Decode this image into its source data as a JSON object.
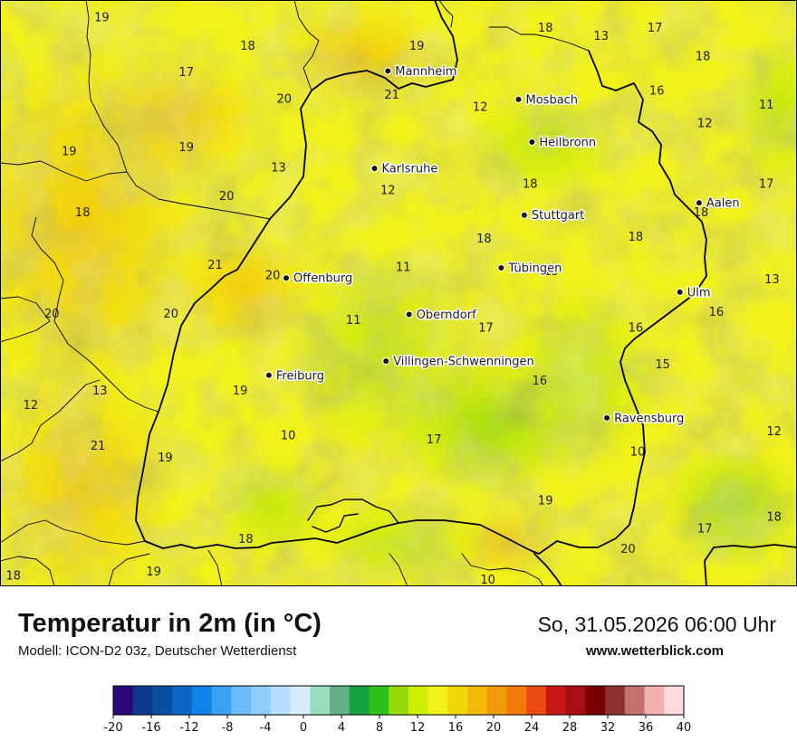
{
  "header": {
    "title": "Temperatur in 2m (in °C)",
    "subtitle": "Modell: ICON-D2 03z, Deutscher Wetterdienst",
    "datetime": "So, 31.05.2026 06:00 Uhr",
    "website": "www.wetterblick.com"
  },
  "map": {
    "cities": [
      {
        "name": "Mannheim",
        "lon": 8.47,
        "lat": 49.49
      },
      {
        "name": "Mosbach",
        "lon": 9.15,
        "lat": 49.35
      },
      {
        "name": "Heilbronn",
        "lon": 9.22,
        "lat": 49.14
      },
      {
        "name": "Karlsruhe",
        "lon": 8.4,
        "lat": 49.01
      },
      {
        "name": "Stuttgart",
        "lon": 9.18,
        "lat": 48.78
      },
      {
        "name": "Aalen",
        "lon": 10.09,
        "lat": 48.84
      },
      {
        "name": "Tübingen",
        "lon": 9.06,
        "lat": 48.52
      },
      {
        "name": "Offenburg",
        "lon": 7.94,
        "lat": 48.47
      },
      {
        "name": "Ulm",
        "lon": 9.99,
        "lat": 48.4
      },
      {
        "name": "Oberndorf",
        "lon": 8.58,
        "lat": 48.29
      },
      {
        "name": "Villingen-Schwenningen",
        "lon": 8.46,
        "lat": 48.06
      },
      {
        "name": "Freiburg",
        "lon": 7.85,
        "lat": 47.99
      },
      {
        "name": "Ravensburg",
        "lon": 9.61,
        "lat": 47.78
      }
    ],
    "temperature_labels": [
      {
        "value": "19",
        "lon": 6.98,
        "lat": 49.75
      },
      {
        "value": "18",
        "lon": 7.74,
        "lat": 49.61
      },
      {
        "value": "19",
        "lon": 8.62,
        "lat": 49.61
      },
      {
        "value": "18",
        "lon": 9.29,
        "lat": 49.7
      },
      {
        "value": "13",
        "lon": 9.58,
        "lat": 49.66
      },
      {
        "value": "17",
        "lon": 9.86,
        "lat": 49.7
      },
      {
        "value": "18",
        "lon": 10.11,
        "lat": 49.56
      },
      {
        "value": "17",
        "lon": 7.42,
        "lat": 49.48
      },
      {
        "value": "20",
        "lon": 7.93,
        "lat": 49.35
      },
      {
        "value": "21",
        "lon": 8.49,
        "lat": 49.37
      },
      {
        "value": "12",
        "lon": 8.95,
        "lat": 49.31
      },
      {
        "value": "16",
        "lon": 9.87,
        "lat": 49.39
      },
      {
        "value": "11",
        "lon": 10.44,
        "lat": 49.32
      },
      {
        "value": "12",
        "lon": 10.12,
        "lat": 49.23
      },
      {
        "value": "19",
        "lon": 6.81,
        "lat": 49.09
      },
      {
        "value": "19",
        "lon": 7.42,
        "lat": 49.11
      },
      {
        "value": "13",
        "lon": 7.9,
        "lat": 49.01
      },
      {
        "value": "12",
        "lon": 8.47,
        "lat": 48.9
      },
      {
        "value": "18",
        "lon": 9.21,
        "lat": 48.93
      },
      {
        "value": "17",
        "lon": 10.44,
        "lat": 48.93
      },
      {
        "value": "20",
        "lon": 7.63,
        "lat": 48.87
      },
      {
        "value": "18",
        "lon": 6.88,
        "lat": 48.79
      },
      {
        "value": "18",
        "lon": 10.1,
        "lat": 48.79
      },
      {
        "value": "18",
        "lon": 8.97,
        "lat": 48.66
      },
      {
        "value": "18",
        "lon": 9.76,
        "lat": 48.67
      },
      {
        "value": "11",
        "lon": 8.55,
        "lat": 48.52
      },
      {
        "value": "21",
        "lon": 7.57,
        "lat": 48.53
      },
      {
        "value": "20",
        "lon": 7.87,
        "lat": 48.48
      },
      {
        "value": "19",
        "lon": 9.32,
        "lat": 48.5
      },
      {
        "value": "13",
        "lon": 10.47,
        "lat": 48.46
      },
      {
        "value": "20",
        "lon": 6.72,
        "lat": 48.29
      },
      {
        "value": "20",
        "lon": 7.34,
        "lat": 48.29
      },
      {
        "value": "17",
        "lon": 8.98,
        "lat": 48.22
      },
      {
        "value": "16",
        "lon": 9.76,
        "lat": 48.22
      },
      {
        "value": "11",
        "lon": 8.29,
        "lat": 48.26
      },
      {
        "value": "16",
        "lon": 10.18,
        "lat": 48.3
      },
      {
        "value": "15",
        "lon": 9.9,
        "lat": 48.04
      },
      {
        "value": "16",
        "lon": 9.26,
        "lat": 47.96
      },
      {
        "value": "12",
        "lon": 6.61,
        "lat": 47.84
      },
      {
        "value": "13",
        "lon": 6.97,
        "lat": 47.91
      },
      {
        "value": "19",
        "lon": 7.7,
        "lat": 47.91
      },
      {
        "value": "10",
        "lon": 7.95,
        "lat": 47.69
      },
      {
        "value": "17",
        "lon": 8.71,
        "lat": 47.67
      },
      {
        "value": "12",
        "lon": 10.48,
        "lat": 47.71
      },
      {
        "value": "21",
        "lon": 6.96,
        "lat": 47.64
      },
      {
        "value": "19",
        "lon": 7.31,
        "lat": 47.58
      },
      {
        "value": "10",
        "lon": 9.77,
        "lat": 47.61
      },
      {
        "value": "19",
        "lon": 9.29,
        "lat": 47.37
      },
      {
        "value": "18",
        "lon": 7.73,
        "lat": 47.18
      },
      {
        "value": "17",
        "lon": 10.12,
        "lat": 47.23
      },
      {
        "value": "18",
        "lon": 10.48,
        "lat": 47.29
      },
      {
        "value": "20",
        "lon": 9.72,
        "lat": 47.13
      },
      {
        "value": "18",
        "lon": 6.52,
        "lat": 47.0
      },
      {
        "value": "19",
        "lon": 7.25,
        "lat": 47.02
      },
      {
        "value": "10",
        "lon": 8.99,
        "lat": 46.98
      }
    ]
  },
  "legend": {
    "unit": "°C",
    "colors": [
      "#2a0a7a",
      "#0d3a8e",
      "#0a4f9e",
      "#0a66c2",
      "#1183e6",
      "#3aa0f2",
      "#6dbcf8",
      "#8fcdfb",
      "#b8defd",
      "#d6ebfe",
      "#99ddc0",
      "#66b089",
      "#14a33c",
      "#2fbf1a",
      "#99d90c",
      "#ccee00",
      "#f2f21a",
      "#f2d80a",
      "#f2b90a",
      "#f29a0a",
      "#f27a0a",
      "#e84a10",
      "#c8161a",
      "#a80f14",
      "#7a0000",
      "#8e3030",
      "#c47070",
      "#f0b0b0",
      "#ffdada"
    ],
    "ticks": [
      "-20",
      "-16",
      "-12",
      "-8",
      "-4",
      "0",
      "4",
      "8",
      "12",
      "16",
      "20",
      "24",
      "28",
      "32",
      "36",
      "40"
    ]
  }
}
